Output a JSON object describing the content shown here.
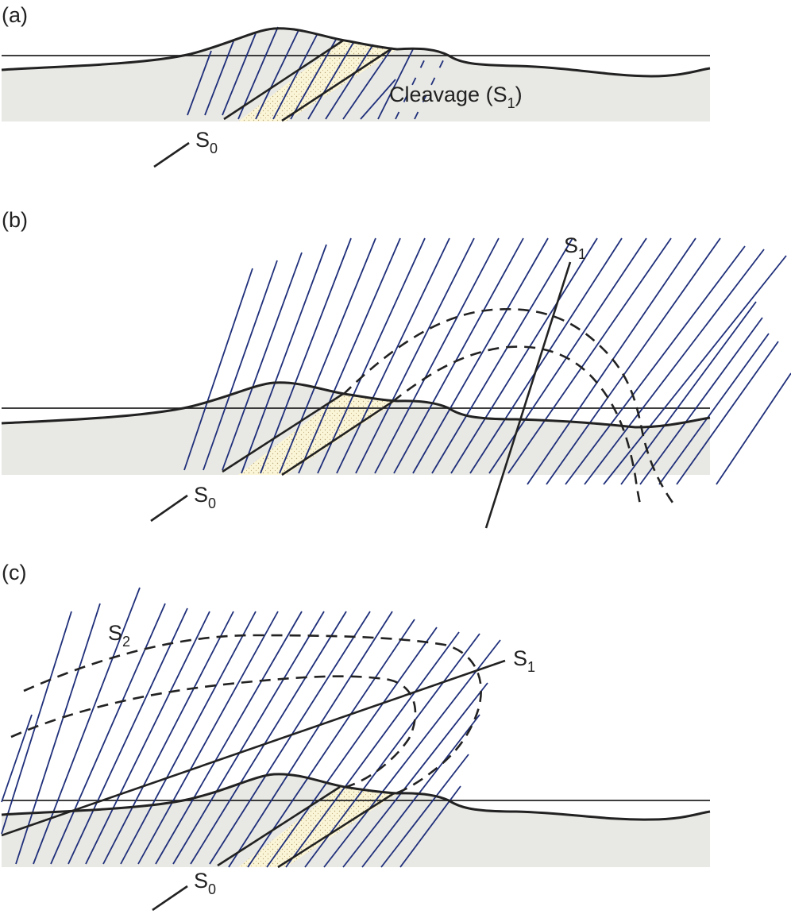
{
  "panels": [
    {
      "id": "a",
      "label": "(a)",
      "labels": {
        "s0": "S",
        "s0_sub": "0",
        "cleavage": "Cleavage (S",
        "cleavage_sub": "1",
        "cleavage_close": ")"
      }
    },
    {
      "id": "b",
      "label": "(b)",
      "labels": {
        "s0": "S",
        "s0_sub": "0",
        "s1": "S",
        "s1_sub": "1"
      }
    },
    {
      "id": "c",
      "label": "(c)",
      "labels": {
        "s0": "S",
        "s0_sub": "0",
        "s1": "S",
        "s1_sub": "1",
        "s2": "S",
        "s2_sub": "2"
      }
    }
  ],
  "colors": {
    "cleavage_lines": "#1f2f7a",
    "ground": "#e8e8e4",
    "stippled_bed": "#fbf5d8",
    "lines": "#222222"
  }
}
